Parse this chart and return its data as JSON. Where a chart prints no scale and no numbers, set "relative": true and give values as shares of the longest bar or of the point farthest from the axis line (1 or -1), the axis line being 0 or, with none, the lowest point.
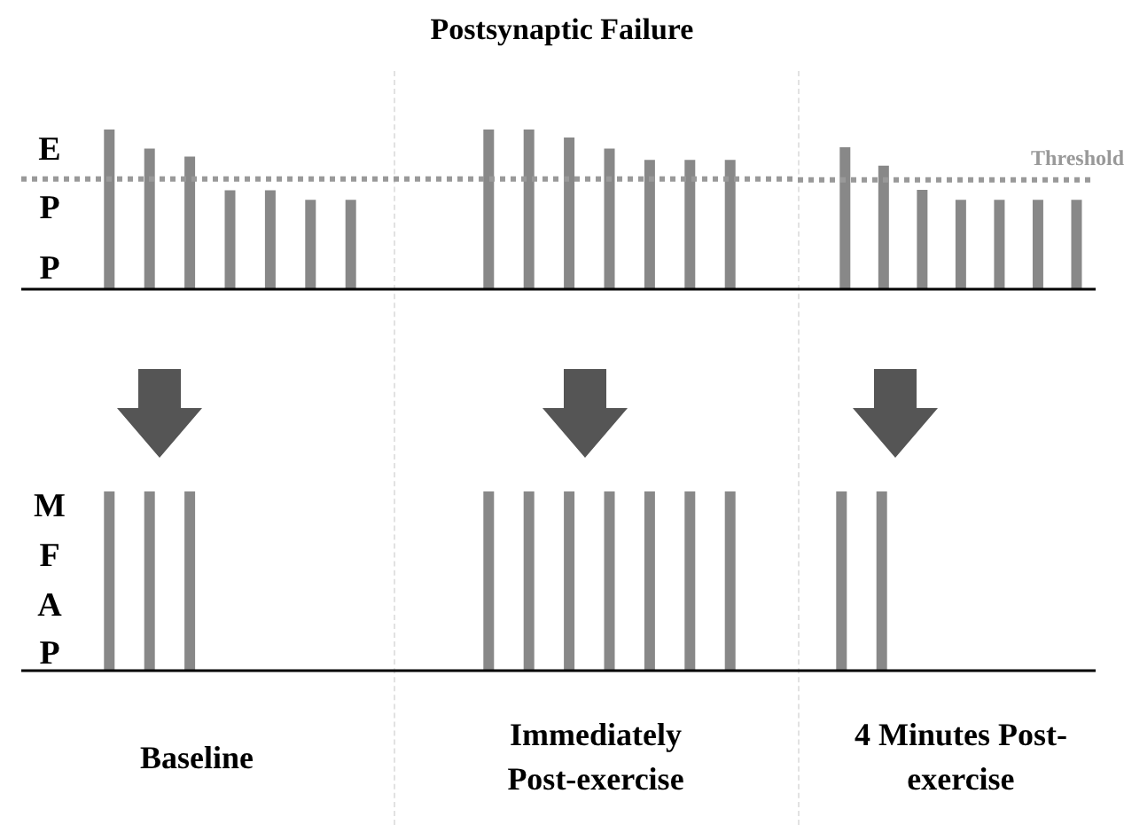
{
  "chart_data": [
    {
      "type": "bar",
      "ylabel": "EPP",
      "relative": true,
      "color": "#888888",
      "categories": [
        null,
        null,
        null,
        null,
        null,
        null,
        null
      ],
      "values": [
        1,
        0.88,
        0.83,
        0.62,
        0.62,
        0.56,
        0.56
      ],
      "ref_lines": [
        {
          "axis": "y",
          "value": 0.69,
          "color": "#999999",
          "line_style": "dotted"
        }
      ]
    },
    {
      "type": "bar",
      "title": "Postsynaptic Failure",
      "relative": true,
      "color": "#888888",
      "categories": [
        null,
        null,
        null,
        null,
        null,
        null,
        null
      ],
      "values": [
        1,
        1,
        0.95,
        0.88,
        0.81,
        0.81,
        0.81
      ],
      "ref_lines": [
        {
          "axis": "y",
          "value": 0.69,
          "color": "#999999",
          "line_style": "dotted"
        }
      ]
    },
    {
      "type": "bar",
      "relative": true,
      "color": "#888888",
      "categories": [
        null,
        null,
        null,
        null,
        null,
        null,
        null
      ],
      "values": [
        1,
        0.87,
        0.7,
        0.63,
        0.63,
        0.63,
        0.63
      ],
      "ref_lines": [
        {
          "axis": "y",
          "value": 0.77,
          "label": "Threshold",
          "color": "#999999",
          "line_style": "dotted"
        }
      ]
    },
    {
      "type": "bar",
      "ylabel": "MFAP",
      "xlabel": "Baseline",
      "relative": true,
      "color": "#888888",
      "categories": [
        null,
        null,
        null
      ],
      "values": [
        1,
        1,
        1
      ]
    },
    {
      "type": "bar",
      "xlabel": "Immediately Post-exercise",
      "relative": true,
      "color": "#888888",
      "categories": [
        null,
        null,
        null,
        null,
        null,
        null,
        null
      ],
      "values": [
        1,
        1,
        1,
        1,
        1,
        1,
        1
      ]
    },
    {
      "type": "bar",
      "xlabel": "4 Minutes Post-exercise",
      "relative": true,
      "color": "#888888",
      "categories": [
        null,
        null
      ],
      "values": [
        1,
        1
      ]
    }
  ]
}
